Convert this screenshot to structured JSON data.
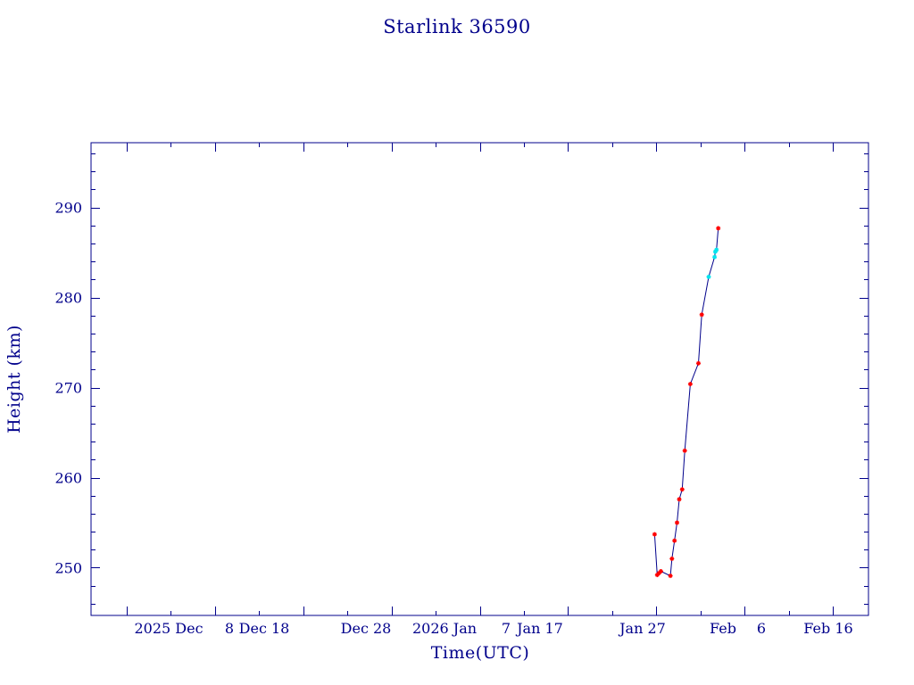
{
  "chart_data": {
    "type": "line",
    "title": "Starlink 36590",
    "xlabel": "Time(UTC)",
    "ylabel": "Height (km)",
    "xlim": [
      "2025-11-24",
      "2026-02-20"
    ],
    "ylim": [
      244.7,
      297.2
    ],
    "x_tick_labels": [
      "2025 Dec",
      "8",
      "Dec 18",
      "Dec 28",
      "2026 Jan",
      "7",
      "Jan 17",
      "Jan 27",
      "Feb",
      "6",
      "Feb 16"
    ],
    "y_tick_labels": [
      "250",
      "260",
      "270",
      "280",
      "290"
    ],
    "grid": false,
    "colors": {
      "axes": "#00008b",
      "line": "#00008b",
      "marker": "#ff0000",
      "marker_alt": "#00e5ee"
    },
    "series": [
      {
        "x": [
          "2026-01-26 19:00",
          "2026-01-27 02:00",
          "2026-01-27 07:00",
          "2026-01-27 12:00",
          "2026-01-28 14:00",
          "2026-01-28 18:00",
          "2026-01-29 01:00",
          "2026-01-29 08:00",
          "2026-01-29 14:00",
          "2026-01-29 22:00",
          "2026-01-30 05:00",
          "2026-01-30 20:00",
          "2026-01-31 18:00",
          "2026-02-01 03:00",
          "2026-02-01 22:00",
          "2026-02-02 14:00",
          "2026-02-02 16:00",
          "2026-02-02 19:00",
          "2026-02-03 00:00"
        ],
        "y": [
          253.7,
          249.2,
          249.4,
          249.6,
          249.1,
          251.0,
          253.0,
          255.0,
          257.6,
          258.7,
          263.0,
          270.4,
          272.7,
          278.1,
          282.3,
          284.5,
          285.1,
          285.3,
          287.7
        ],
        "marker_colors": [
          "red",
          "red",
          "red",
          "red",
          "red",
          "red",
          "red",
          "red",
          "red",
          "red",
          "red",
          "red",
          "red",
          "red",
          "cyan",
          "cyan",
          "cyan",
          "cyan",
          "red"
        ]
      }
    ]
  }
}
